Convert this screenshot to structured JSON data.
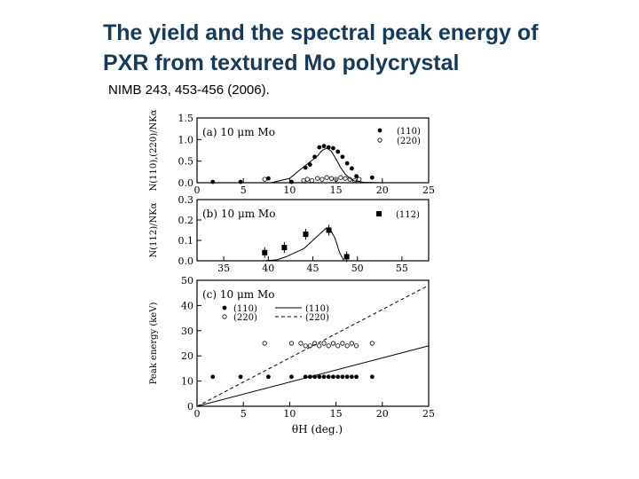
{
  "slide": {
    "title_line1": "The yield and the spectral peak energy of",
    "title_line2": "PXR from textured Mo polycrystal",
    "reference": "NIMB 243, 453-456 (2006)."
  },
  "colors": {
    "title": "#163a5a",
    "ink": "#000000"
  },
  "chart_data": [
    {
      "type": "scatter",
      "panel_label": "(a) 10 μm Mo",
      "ylabel": "N(110),(220)/NKα",
      "xlim": [
        0,
        25
      ],
      "ylim": [
        0,
        1.5
      ],
      "yticks": [
        "0.0",
        "0.5",
        "1.0",
        "1.5"
      ],
      "xticks": [
        "0",
        "5",
        "10",
        "15",
        "20",
        "25"
      ],
      "legend": [
        "(110)",
        "(220)"
      ],
      "series": [
        {
          "name": "(110)",
          "marker": "filled-circle",
          "x": [
            1.7,
            4.7,
            7.7,
            10.2,
            11.7,
            12.2,
            12.7,
            13.2,
            13.7,
            14.2,
            14.7,
            15.2,
            15.7,
            16.2,
            16.7,
            17.2,
            18.9
          ],
          "y": [
            0.02,
            0.02,
            0.1,
            0.02,
            0.35,
            0.42,
            0.6,
            0.82,
            0.85,
            0.82,
            0.8,
            0.72,
            0.6,
            0.45,
            0.33,
            0.15,
            0.12
          ]
        },
        {
          "name": "(220)",
          "marker": "open-circle",
          "x": [
            7.3,
            11.5,
            11.9,
            12.4,
            13.0,
            13.5,
            14.0,
            14.5,
            15.0,
            15.5,
            16.0,
            16.5,
            17.0,
            17.5
          ],
          "y": [
            0.08,
            0.05,
            0.08,
            0.05,
            0.1,
            0.08,
            0.12,
            0.1,
            0.08,
            0.12,
            0.1,
            0.08,
            0.05,
            0.08
          ]
        },
        {
          "name": "calc (110)",
          "marker": "line",
          "x": [
            0,
            8,
            10,
            11,
            12,
            13,
            13.5,
            14,
            14.5,
            15,
            15.5,
            16,
            16.5,
            17,
            18,
            20,
            25
          ],
          "y": [
            0,
            0,
            0.1,
            0.28,
            0.45,
            0.62,
            0.75,
            0.8,
            0.73,
            0.55,
            0.35,
            0.2,
            0.1,
            0.04,
            0.01,
            0,
            0
          ]
        }
      ]
    },
    {
      "type": "scatter",
      "panel_label": "(b) 10 μm Mo",
      "ylabel": "N(112)/NKα",
      "xlim": [
        32,
        58
      ],
      "ylim": [
        0,
        0.3
      ],
      "yticks": [
        "0.0",
        "0.1",
        "0.2",
        "0.3"
      ],
      "xticks": [
        "35",
        "40",
        "45",
        "50",
        "55"
      ],
      "legend": [
        "(112)"
      ],
      "series": [
        {
          "name": "(112)",
          "marker": "filled-square",
          "x": [
            39.6,
            41.8,
            44.2,
            46.8,
            48.8
          ],
          "y": [
            0.04,
            0.065,
            0.13,
            0.15,
            0.02
          ]
        },
        {
          "name": "calc (112)",
          "marker": "line",
          "x": [
            39.5,
            41,
            42,
            43,
            44,
            44.5,
            45,
            45.5,
            46,
            46.5,
            47,
            47.5,
            48,
            48.5
          ],
          "y": [
            0,
            0.005,
            0.02,
            0.04,
            0.06,
            0.08,
            0.1,
            0.12,
            0.14,
            0.16,
            0.15,
            0.11,
            0.04,
            0
          ]
        }
      ]
    },
    {
      "type": "scatter",
      "panel_label": "(c) 10 μm Mo",
      "ylabel": "Peak energy (keV)",
      "xlabel": "θH (deg.)",
      "xlim": [
        0,
        25
      ],
      "ylim": [
        0,
        50
      ],
      "yticks": [
        "0",
        "10",
        "20",
        "30",
        "40",
        "50"
      ],
      "xticks": [
        "0",
        "5",
        "10",
        "15",
        "20",
        "25"
      ],
      "legend": [
        "(110)",
        "(220)",
        "(110)",
        "(220)"
      ],
      "series": [
        {
          "name": "(110)",
          "marker": "filled-circle",
          "x": [
            1.7,
            4.7,
            7.7,
            10.2,
            11.7,
            12.2,
            12.7,
            13.2,
            13.7,
            14.2,
            14.7,
            15.2,
            15.7,
            16.2,
            16.7,
            17.2,
            18.9
          ],
          "y": [
            11.7,
            11.7,
            11.7,
            11.7,
            11.7,
            11.7,
            11.7,
            11.7,
            11.7,
            11.7,
            11.7,
            11.7,
            11.7,
            11.7,
            11.7,
            11.7,
            11.7
          ]
        },
        {
          "name": "(220)",
          "marker": "open-circle",
          "x": [
            7.3,
            10.2,
            11.2,
            11.7,
            12.2,
            12.7,
            13.2,
            13.7,
            14.2,
            14.7,
            15.2,
            15.7,
            16.2,
            16.7,
            17.2,
            18.9
          ],
          "y": [
            25,
            25,
            25,
            24,
            24,
            25,
            24,
            25,
            24,
            25,
            24,
            25,
            24,
            25,
            24,
            25
          ]
        },
        {
          "name": "calc (110)",
          "marker": "solid-line",
          "x": [
            0,
            25
          ],
          "y": [
            0,
            24
          ]
        },
        {
          "name": "calc (220)",
          "marker": "dashed-line",
          "x": [
            0,
            25
          ],
          "y": [
            0,
            48
          ]
        }
      ]
    }
  ]
}
